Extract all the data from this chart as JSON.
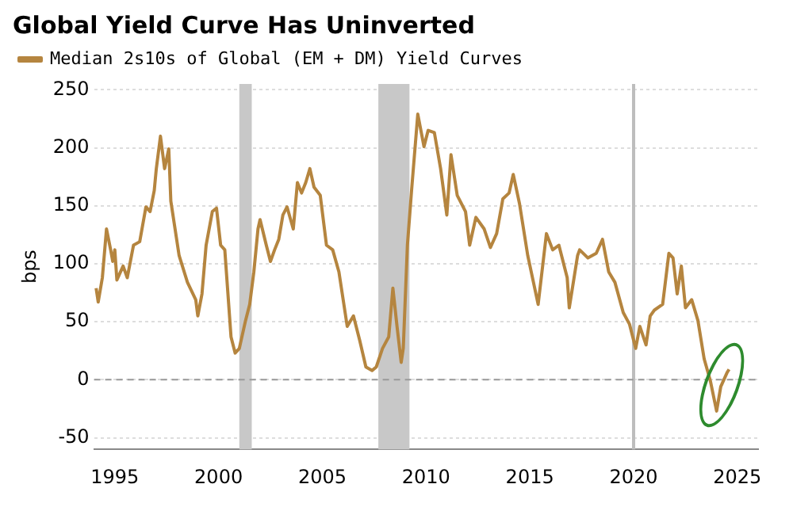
{
  "chart_data": {
    "type": "line",
    "title": "Global Yield Curve Has Uninverted",
    "ylabel": "bps",
    "x": [
      1994.1,
      1994.2,
      1994.4,
      1994.6,
      1994.8,
      1994.9,
      1995.0,
      1995.1,
      1995.4,
      1995.6,
      1995.9,
      1996.2,
      1996.5,
      1996.7,
      1996.9,
      1997.0,
      1997.2,
      1997.4,
      1997.6,
      1997.7,
      1998.1,
      1998.5,
      1998.9,
      1999.0,
      1999.2,
      1999.4,
      1999.7,
      1999.9,
      2000.1,
      2000.3,
      2000.6,
      2000.8,
      2001.0,
      2001.3,
      2001.5,
      2001.7,
      2001.9,
      2002.0,
      2002.3,
      2002.5,
      2002.7,
      2002.9,
      2003.1,
      2003.3,
      2003.6,
      2003.8,
      2004.0,
      2004.2,
      2004.4,
      2004.6,
      2004.9,
      2005.2,
      2005.5,
      2005.8,
      2006.2,
      2006.5,
      2006.8,
      2007.1,
      2007.4,
      2007.6,
      2007.9,
      2008.2,
      2008.4,
      2008.6,
      2008.8,
      2008.9,
      2009.1,
      2009.3,
      2009.6,
      2009.9,
      2010.1,
      2010.4,
      2010.7,
      2011.0,
      2011.2,
      2011.5,
      2011.9,
      2012.1,
      2012.4,
      2012.8,
      2013.1,
      2013.4,
      2013.7,
      2014.0,
      2014.2,
      2014.5,
      2014.9,
      2015.4,
      2015.8,
      2016.1,
      2016.4,
      2016.8,
      2016.9,
      2017.3,
      2017.4,
      2017.8,
      2018.2,
      2018.5,
      2018.8,
      2019.1,
      2019.5,
      2019.8,
      2020.1,
      2020.3,
      2020.6,
      2020.8,
      2021.0,
      2021.4,
      2021.7,
      2021.9,
      2022.1,
      2022.3,
      2022.5,
      2022.8,
      2023.1,
      2023.4,
      2023.7,
      2024.0,
      2024.2,
      2024.5,
      2024.6
    ],
    "series": [
      {
        "name": "Median 2s10s of Global (EM + DM) Yield Curves",
        "color": "#b5853f",
        "values": [
          79,
          67,
          88,
          130,
          112,
          102,
          112,
          86,
          98,
          88,
          116,
          119,
          149,
          145,
          163,
          182,
          210,
          182,
          199,
          154,
          107,
          84,
          69,
          55,
          74,
          116,
          145,
          148,
          116,
          112,
          37,
          23,
          27,
          51,
          65,
          93,
          130,
          138,
          116,
          102,
          112,
          121,
          142,
          149,
          130,
          170,
          161,
          170,
          182,
          166,
          159,
          116,
          112,
          93,
          46,
          55,
          34,
          11,
          8,
          11,
          27,
          37,
          79,
          46,
          15,
          27,
          116,
          163,
          229,
          201,
          215,
          213,
          182,
          142,
          194,
          159,
          145,
          116,
          140,
          130,
          114,
          126,
          156,
          161,
          177,
          152,
          107,
          65,
          126,
          112,
          116,
          88,
          62,
          107,
          112,
          105,
          109,
          121,
          93,
          84,
          58,
          48,
          27,
          46,
          30,
          55,
          60,
          65,
          109,
          105,
          74,
          98,
          62,
          69,
          51,
          18,
          -1,
          -27,
          -6,
          6,
          9
        ]
      }
    ],
    "xlim": [
      1994,
      2026
    ],
    "xticks": [
      1995,
      2000,
      2005,
      2010,
      2015,
      2020,
      2025
    ],
    "ylim": [
      -60,
      255
    ],
    "yticks": [
      -50,
      0,
      50,
      100,
      150,
      200,
      250
    ],
    "grid": "y",
    "legend": "top left",
    "bands": [
      {
        "axis": "x",
        "from": 2001.0,
        "to": 2001.6,
        "color": "#c8c8c8"
      },
      {
        "axis": "x",
        "from": 2007.7,
        "to": 2009.2,
        "color": "#c8c8c8"
      }
    ],
    "ref_lines": [
      {
        "axis": "x",
        "value": 2020,
        "color": "#bdbdbd",
        "line_style": "solid"
      },
      {
        "axis": "y",
        "value": 0,
        "color": "#999999",
        "line_style": "dashed"
      }
    ]
  }
}
